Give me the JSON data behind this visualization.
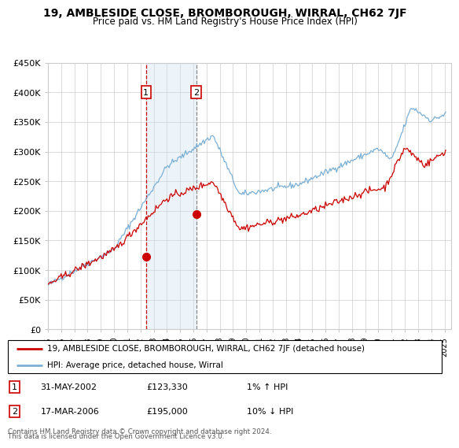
{
  "title": "19, AMBLESIDE CLOSE, BROMBOROUGH, WIRRAL, CH62 7JF",
  "subtitle": "Price paid vs. HM Land Registry's House Price Index (HPI)",
  "legend_line1": "19, AMBLESIDE CLOSE, BROMBOROUGH, WIRRAL, CH62 7JF (detached house)",
  "legend_line2": "HPI: Average price, detached house, Wirral",
  "table_entries": [
    {
      "num": 1,
      "date": "31-MAY-2002",
      "price": "£123,330",
      "hpi": "1% ↑ HPI"
    },
    {
      "num": 2,
      "date": "17-MAR-2006",
      "price": "£195,000",
      "hpi": "10% ↓ HPI"
    }
  ],
  "footer": "Contains HM Land Registry data © Crown copyright and database right 2024.\nThis data is licensed under the Open Government Licence v3.0.",
  "ylim": [
    0,
    450000
  ],
  "yticks": [
    0,
    50000,
    100000,
    150000,
    200000,
    250000,
    300000,
    350000,
    400000,
    450000
  ],
  "ytick_labels": [
    "£0",
    "£50K",
    "£100K",
    "£150K",
    "£200K",
    "£250K",
    "£300K",
    "£350K",
    "£400K",
    "£450K"
  ],
  "xlim_start": 1995.0,
  "xlim_end": 2025.5,
  "xtick_years": [
    1995,
    1996,
    1997,
    1998,
    1999,
    2000,
    2001,
    2002,
    2003,
    2004,
    2005,
    2006,
    2007,
    2008,
    2009,
    2010,
    2011,
    2012,
    2013,
    2014,
    2015,
    2016,
    2017,
    2018,
    2019,
    2020,
    2021,
    2022,
    2023,
    2024,
    2025
  ],
  "marker1_x": 2002.42,
  "marker1_y": 123330,
  "marker2_x": 2006.21,
  "marker2_y": 195000,
  "shade_color": "#d0e4f0",
  "red_color": "#cc0000",
  "blue_color": "#7bafd4",
  "marker2_line_color": "#888888",
  "bg_color": "#ffffff",
  "grid_color": "#cccccc"
}
